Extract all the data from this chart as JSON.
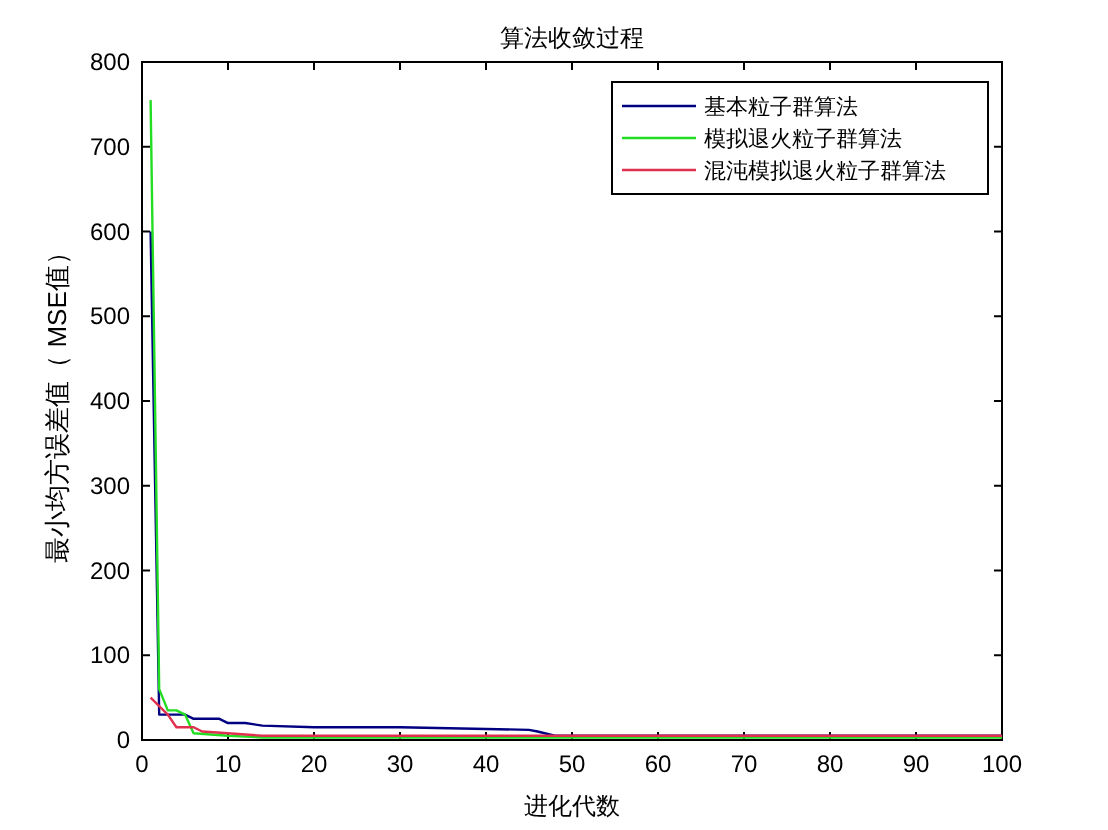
{
  "chart_data": {
    "type": "line",
    "title": "算法收敛过程",
    "xlabel": "进化代数",
    "ylabel": "最小均方误差值（ MSE值）",
    "xlim": [
      0,
      100
    ],
    "ylim": [
      0,
      800
    ],
    "xticks": [
      0,
      10,
      20,
      30,
      40,
      50,
      60,
      70,
      80,
      90,
      100
    ],
    "yticks": [
      0,
      100,
      200,
      300,
      400,
      500,
      600,
      700,
      800
    ],
    "legend": "top right",
    "grid": false,
    "series": [
      {
        "name": "基本粒子群算法",
        "color": "#000080",
        "x": [
          1,
          2,
          3,
          5,
          6,
          9,
          10,
          12,
          14,
          20,
          30,
          40,
          45,
          46,
          48,
          100
        ],
        "values": [
          600,
          30,
          30,
          30,
          25,
          25,
          20,
          20,
          17,
          15,
          15,
          13,
          12,
          10,
          5,
          5
        ]
      },
      {
        "name": "模拟退火粒子群算法",
        "color": "#22dd22",
        "x": [
          1,
          2,
          3,
          4,
          5,
          6,
          10,
          14,
          100
        ],
        "values": [
          755,
          60,
          35,
          35,
          30,
          8,
          5,
          3,
          3
        ]
      },
      {
        "name": "混沌模拟退火粒子群算法",
        "color": "#e03050",
        "x": [
          1,
          2,
          3,
          4,
          6,
          7,
          10,
          14,
          100
        ],
        "values": [
          50,
          40,
          30,
          15,
          15,
          10,
          8,
          5,
          5
        ]
      }
    ]
  }
}
